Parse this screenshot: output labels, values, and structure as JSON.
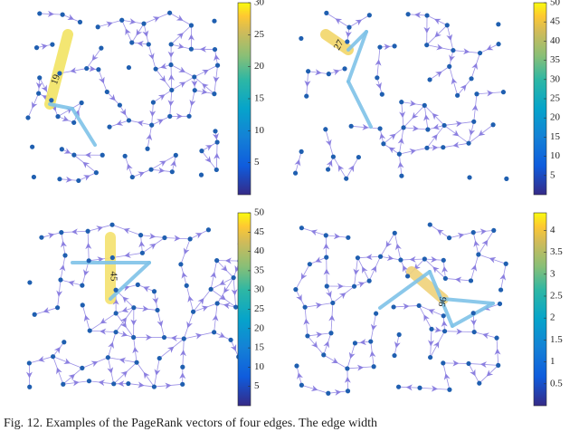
{
  "panels": [
    {
      "edge_label": "19",
      "colorbar": {
        "lim": [
          0,
          30
        ],
        "ticks": [
          5,
          10,
          15,
          20,
          25,
          30
        ]
      }
    },
    {
      "edge_label": "27",
      "colorbar": {
        "lim": [
          0,
          50
        ],
        "ticks": [
          5,
          10,
          15,
          20,
          25,
          30,
          35,
          40,
          45,
          50
        ]
      }
    },
    {
      "edge_label": "45",
      "colorbar": {
        "lim": [
          0,
          50
        ],
        "ticks": [
          5,
          10,
          15,
          20,
          25,
          30,
          35,
          40,
          45,
          50
        ]
      }
    },
    {
      "edge_label": "96",
      "colorbar": {
        "lim": [
          0,
          4.4
        ],
        "ticks": [
          0.5,
          1,
          1.5,
          2,
          2.5,
          3,
          3.5,
          4
        ]
      }
    }
  ],
  "caption": "Fig. 12.  Examples of the PageRank vectors of four edges. The edge width"
}
